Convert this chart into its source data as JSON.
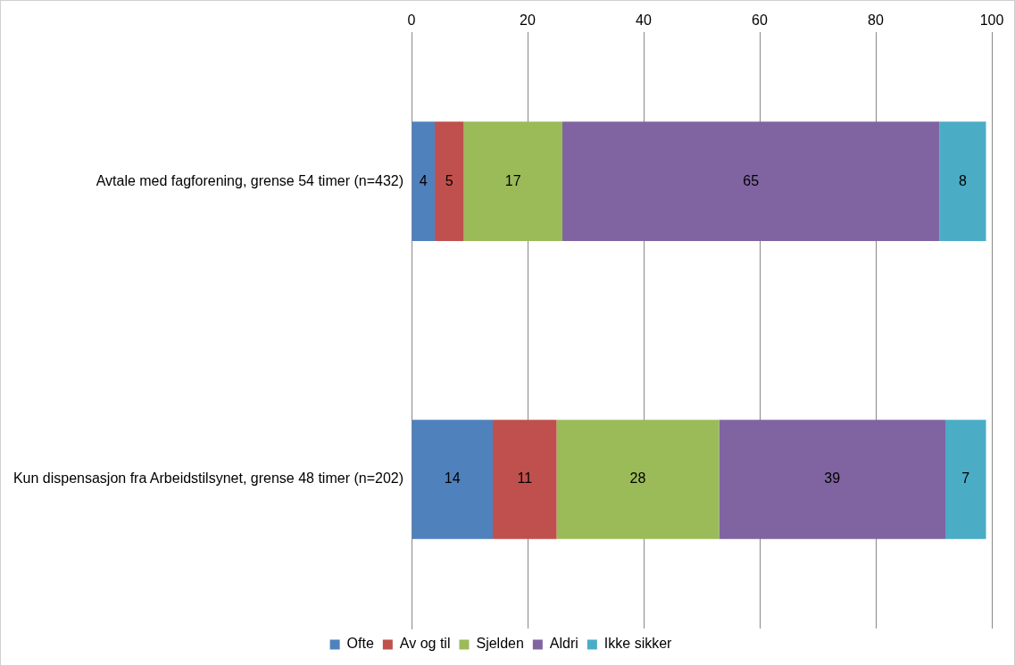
{
  "chart_data": {
    "type": "bar",
    "orientation": "horizontal",
    "stacked": true,
    "categories": [
      "Avtale med fagforening, grense 54 timer (n=432)",
      "Kun dispensasjon fra Arbeidstilsynet, grense 48 timer (n=202)"
    ],
    "series": [
      {
        "name": "Ofte",
        "color": "#4f81bd",
        "values": [
          4,
          14
        ]
      },
      {
        "name": "Av og til",
        "color": "#c0504d",
        "values": [
          5,
          11
        ]
      },
      {
        "name": "Sjelden",
        "color": "#9bbb59",
        "values": [
          17,
          28
        ]
      },
      {
        "name": "Aldri",
        "color": "#8064a2",
        "values": [
          65,
          39
        ]
      },
      {
        "name": "Ikke sikker",
        "color": "#4bacc6",
        "values": [
          8,
          7
        ]
      }
    ],
    "xlim": [
      0,
      100
    ],
    "xticks": [
      0,
      20,
      40,
      60,
      80,
      100
    ],
    "grid": "x",
    "legend": "bottom",
    "data_labels": true
  }
}
